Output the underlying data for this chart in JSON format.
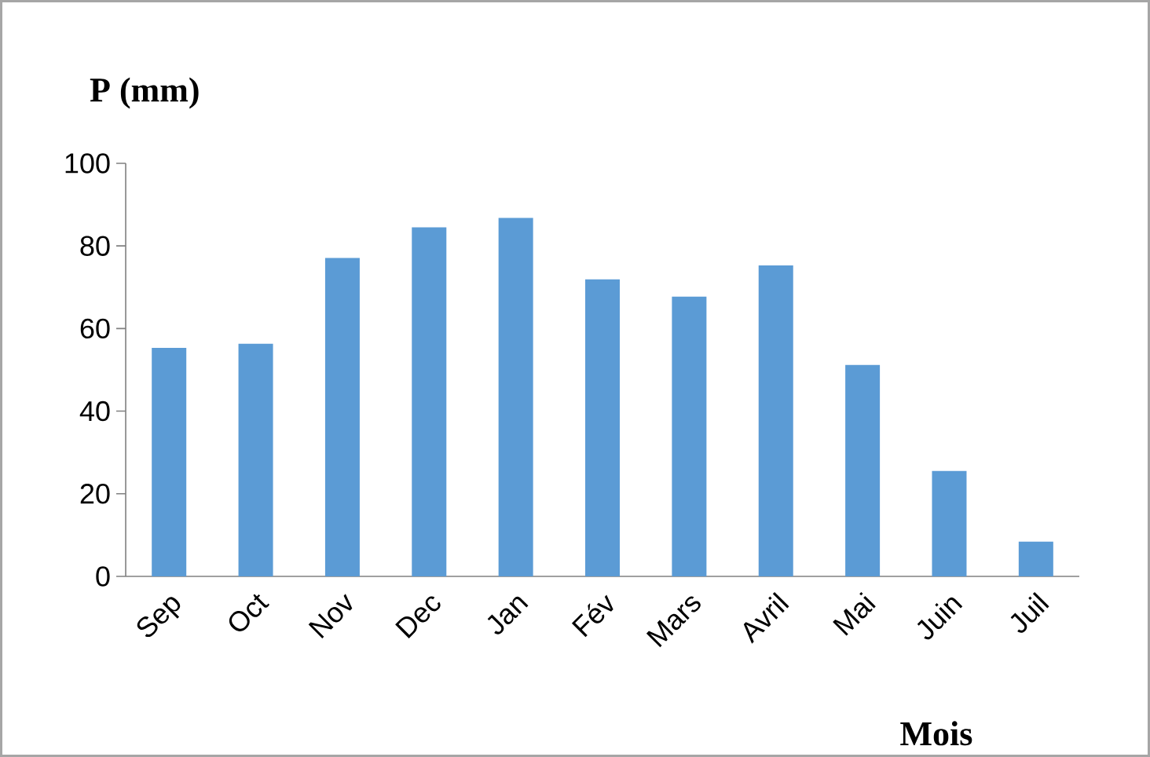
{
  "chart_data": {
    "type": "bar",
    "xlabel": "Mois",
    "ylabel": "P (mm)",
    "categories": [
      "Sep",
      "Oct",
      "Nov",
      "Dec",
      "Jan",
      "Fév",
      "Mars",
      "Avril",
      "Mai",
      "Juin",
      "Juil"
    ],
    "values": [
      55.3,
      56.3,
      77.1,
      84.5,
      86.8,
      71.9,
      67.7,
      75.3,
      51.2,
      25.5,
      8.4
    ],
    "color": "#5b9bd5",
    "ylim": [
      0,
      100
    ],
    "yticks": [
      0,
      20,
      40,
      60,
      80,
      100
    ]
  }
}
